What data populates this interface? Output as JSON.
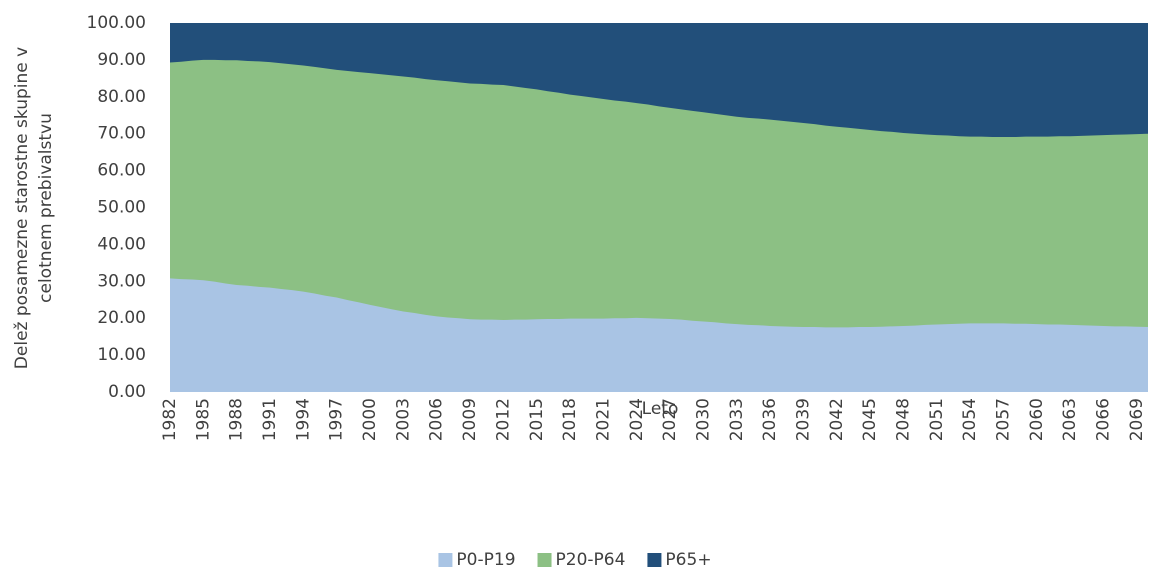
{
  "chart_data": {
    "type": "stacked_area",
    "y_label": [
      "Delež posamezne starostne skupine v",
      "celotnem prebivalstvu"
    ],
    "x_label": "Leto",
    "categories": [
      1982,
      null,
      null,
      1985,
      null,
      null,
      1988,
      null,
      null,
      1991,
      null,
      null,
      1994,
      null,
      null,
      1997,
      null,
      null,
      2000,
      null,
      null,
      2003,
      null,
      null,
      2006,
      null,
      null,
      2009,
      null,
      null,
      2012,
      null,
      null,
      2015,
      null,
      null,
      2018,
      null,
      null,
      2021,
      null,
      null,
      2024,
      null,
      null,
      2027,
      null,
      null,
      2030,
      null,
      null,
      2033,
      null,
      null,
      2036,
      null,
      null,
      2039,
      null,
      null,
      2042,
      null,
      null,
      2045,
      null,
      null,
      2048,
      null,
      null,
      2051,
      null,
      null,
      2054,
      null,
      null,
      2057,
      null,
      null,
      2060,
      null,
      null,
      2063,
      null,
      null,
      2066,
      null,
      null,
      2069,
      null
    ],
    "series": [
      {
        "name": "P0-P19",
        "color": "#a9c4e4",
        "values": [
          30.8,
          30.6,
          30.5,
          30.3,
          29.9,
          29.4,
          29.0,
          28.8,
          28.5,
          28.3,
          27.9,
          27.6,
          27.2,
          26.7,
          26.1,
          25.6,
          24.9,
          24.3,
          23.6,
          23.0,
          22.4,
          21.8,
          21.4,
          20.9,
          20.5,
          20.2,
          20.0,
          19.7,
          19.6,
          19.6,
          19.5,
          19.6,
          19.6,
          19.7,
          19.8,
          19.8,
          19.9,
          19.9,
          19.9,
          19.9,
          20.0,
          20.0,
          20.1,
          20.0,
          19.9,
          19.8,
          19.6,
          19.3,
          19.1,
          18.9,
          18.6,
          18.4,
          18.2,
          18.1,
          17.9,
          17.8,
          17.7,
          17.6,
          17.6,
          17.5,
          17.5,
          17.5,
          17.6,
          17.6,
          17.7,
          17.8,
          17.9,
          18.0,
          18.2,
          18.3,
          18.4,
          18.5,
          18.6,
          18.6,
          18.6,
          18.6,
          18.5,
          18.5,
          18.4,
          18.3,
          18.3,
          18.2,
          18.1,
          18.0,
          17.9,
          17.8,
          17.8,
          17.7,
          17.6
        ]
      },
      {
        "name": "P20-P64",
        "color": "#8cc084",
        "values": [
          58.5,
          58.9,
          59.3,
          59.7,
          60.1,
          60.5,
          60.9,
          60.9,
          61.1,
          61.1,
          61.2,
          61.2,
          61.3,
          61.4,
          61.6,
          61.7,
          62.1,
          62.4,
          62.8,
          63.1,
          63.4,
          63.7,
          63.8,
          63.9,
          64.0,
          64.0,
          63.9,
          63.9,
          63.9,
          63.7,
          63.7,
          63.2,
          62.8,
          62.3,
          61.7,
          61.3,
          60.7,
          60.3,
          59.9,
          59.5,
          59.0,
          58.7,
          58.2,
          57.9,
          57.5,
          57.2,
          57.0,
          56.9,
          56.7,
          56.5,
          56.4,
          56.2,
          56.1,
          56.0,
          55.9,
          55.7,
          55.5,
          55.3,
          55.0,
          54.7,
          54.4,
          54.1,
          53.7,
          53.4,
          53.0,
          52.7,
          52.3,
          52.0,
          51.6,
          51.3,
          51.1,
          50.8,
          50.6,
          50.6,
          50.5,
          50.5,
          50.6,
          50.7,
          50.8,
          50.9,
          51.0,
          51.1,
          51.3,
          51.5,
          51.7,
          51.9,
          52.0,
          52.2,
          52.4
        ]
      },
      {
        "name": "P65+",
        "color": "#224f7a",
        "values": [
          10.7,
          10.5,
          10.2,
          10.0,
          10.0,
          10.1,
          10.1,
          10.3,
          10.4,
          10.6,
          10.9,
          11.2,
          11.5,
          11.9,
          12.3,
          12.7,
          13.0,
          13.3,
          13.6,
          13.9,
          14.2,
          14.5,
          14.8,
          15.2,
          15.5,
          15.8,
          16.1,
          16.4,
          16.5,
          16.7,
          16.8,
          17.2,
          17.6,
          18.0,
          18.5,
          18.9,
          19.4,
          19.8,
          20.2,
          20.6,
          21.0,
          21.3,
          21.7,
          22.1,
          22.6,
          23.0,
          23.4,
          23.8,
          24.2,
          24.6,
          25.0,
          25.4,
          25.7,
          25.9,
          26.2,
          26.5,
          26.8,
          27.1,
          27.4,
          27.8,
          28.1,
          28.4,
          28.7,
          29.0,
          29.3,
          29.5,
          29.8,
          30.0,
          30.2,
          30.4,
          30.5,
          30.7,
          30.8,
          30.8,
          30.9,
          30.9,
          30.9,
          30.8,
          30.8,
          30.8,
          30.7,
          30.7,
          30.6,
          30.5,
          30.4,
          30.3,
          30.2,
          30.1,
          30.0
        ]
      }
    ],
    "ylim": [
      0,
      100
    ],
    "yticks": [
      {
        "value": 0,
        "label": "0.00"
      },
      {
        "value": 10,
        "label": "10.00"
      },
      {
        "value": 20,
        "label": "20.00"
      },
      {
        "value": 30,
        "label": "30.00"
      },
      {
        "value": 40,
        "label": "40.00"
      },
      {
        "value": 50,
        "label": "50.00"
      },
      {
        "value": 60,
        "label": "60.00"
      },
      {
        "value": 70,
        "label": "70.00"
      },
      {
        "value": 80,
        "label": "80.00"
      },
      {
        "value": 90,
        "label": "90.00"
      },
      {
        "value": 100,
        "label": "100.00"
      }
    ],
    "legend": "bottom"
  }
}
